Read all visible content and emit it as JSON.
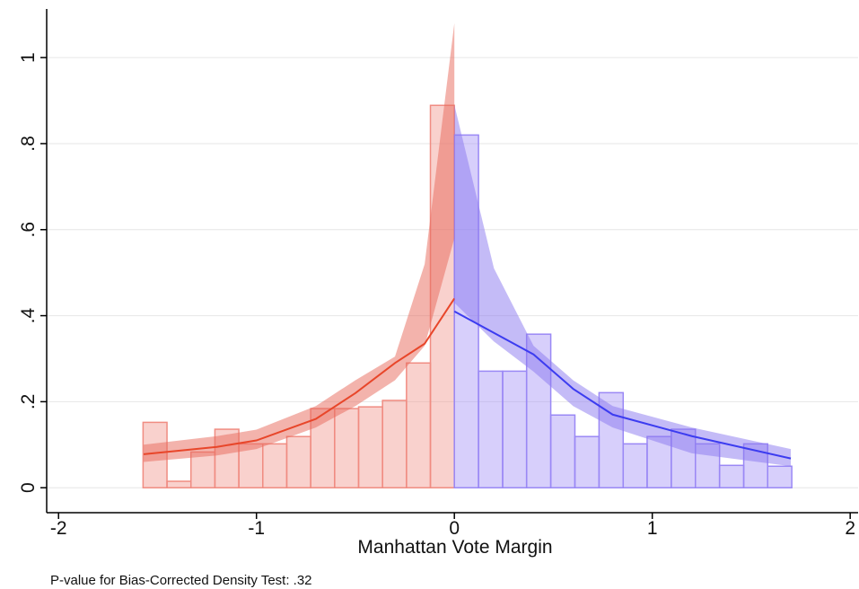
{
  "chart_data": {
    "type": "density",
    "x_label": "Manhattan Vote Margin",
    "note": "P-value for Bias-Corrected Density Test: .32",
    "xlim": [
      -2.06,
      2.04
    ],
    "ylim": [
      -0.058,
      1.113
    ],
    "xticks": [
      -2,
      -1,
      0,
      1,
      2
    ],
    "yticks": [
      0,
      {
        "value": 0.2,
        "label": ".2"
      },
      {
        "value": 0.4,
        "label": ".4"
      },
      {
        "value": 0.6,
        "label": ".6"
      },
      {
        "value": 0.8,
        "label": ".8"
      },
      1
    ],
    "grid": true,
    "histograms": [
      {
        "color": "#f08c82",
        "bins": [
          -1.573,
          -1.452,
          -1.331,
          -1.21,
          -1.089,
          -0.968,
          -0.847,
          -0.726,
          -0.605,
          -0.484,
          -0.363,
          -0.242,
          -0.121,
          0
        ],
        "counts": [
          0.152,
          0.015,
          0.083,
          0.136,
          0.102,
          0.102,
          0.119,
          0.184,
          0.184,
          0.188,
          0.203,
          0.29,
          0.889
        ]
      },
      {
        "color": "#9a88f5",
        "bins": [
          0,
          0.122,
          0.244,
          0.365,
          0.487,
          0.609,
          0.731,
          0.853,
          0.974,
          1.096,
          1.218,
          1.34,
          1.462,
          1.583,
          1.705
        ],
        "counts": [
          0.82,
          0.271,
          0.271,
          0.357,
          0.169,
          0.119,
          0.221,
          0.102,
          0.119,
          0.136,
          0.102,
          0.052,
          0.102,
          0.05
        ]
      }
    ],
    "fits": [
      {
        "color": "#e8462a",
        "band_color": "#e8685a",
        "x": [
          -1.57,
          -1.2,
          -1.0,
          -0.7,
          -0.5,
          -0.3,
          -0.15,
          0
        ],
        "values": [
          0.078,
          0.095,
          0.11,
          0.16,
          0.22,
          0.29,
          0.335,
          0.44
        ],
        "lower": [
          0.06,
          0.075,
          0.09,
          0.14,
          0.19,
          0.25,
          0.33,
          0.58
        ],
        "upper": [
          0.1,
          0.12,
          0.135,
          0.19,
          0.25,
          0.305,
          0.52,
          1.08
        ]
      },
      {
        "color": "#3c3cf0",
        "band_color": "#8a78f0",
        "x": [
          0,
          0.2,
          0.4,
          0.6,
          0.8,
          1.2,
          1.7
        ],
        "values": [
          0.41,
          0.36,
          0.31,
          0.23,
          0.17,
          0.12,
          0.068
        ],
        "lower": [
          0.43,
          0.34,
          0.27,
          0.19,
          0.14,
          0.08,
          0.05
        ],
        "upper": [
          0.89,
          0.51,
          0.33,
          0.25,
          0.19,
          0.14,
          0.09
        ]
      }
    ]
  }
}
